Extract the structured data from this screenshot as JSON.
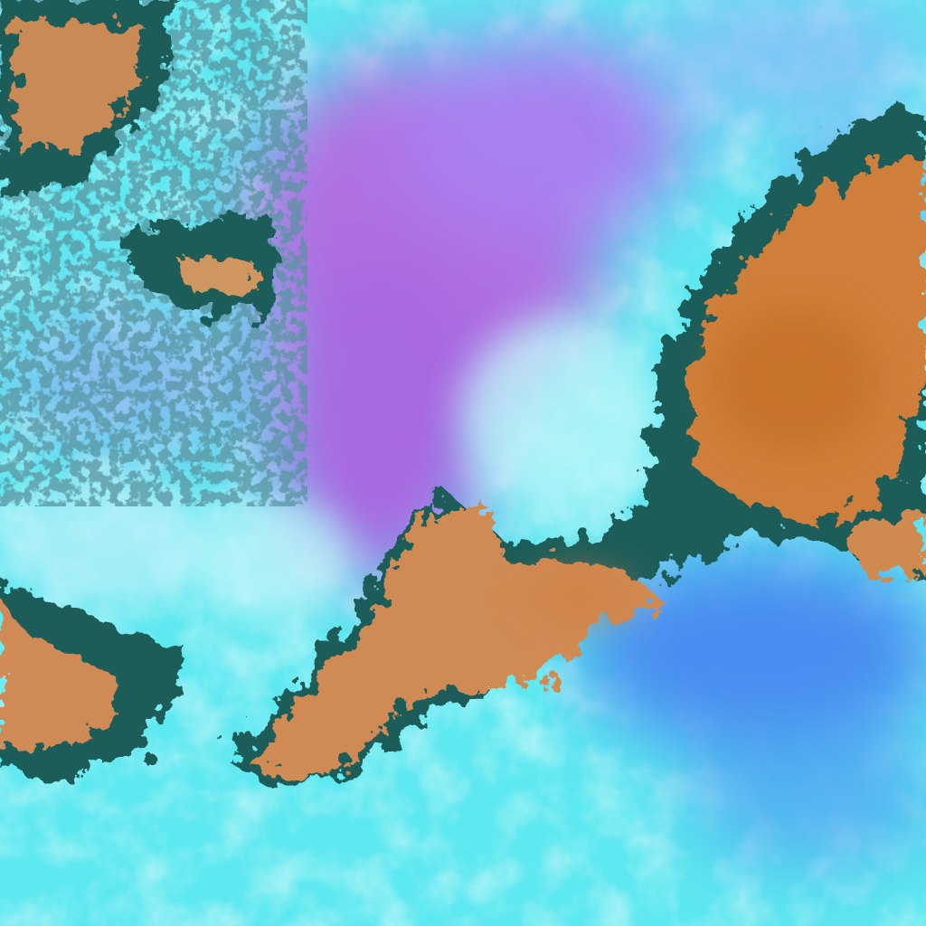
{
  "image": {
    "kind": "false-color satellite imagery of cloud cover",
    "colors": {
      "low_cloud_cyan": "#5ff0f0",
      "bright_cloud": "#c8f8fa",
      "purple_region": "#b070e0",
      "blue_region": "#4a8cf0",
      "orange_cloud": "#d08048",
      "dark_edge": "#1c5a5a"
    }
  }
}
